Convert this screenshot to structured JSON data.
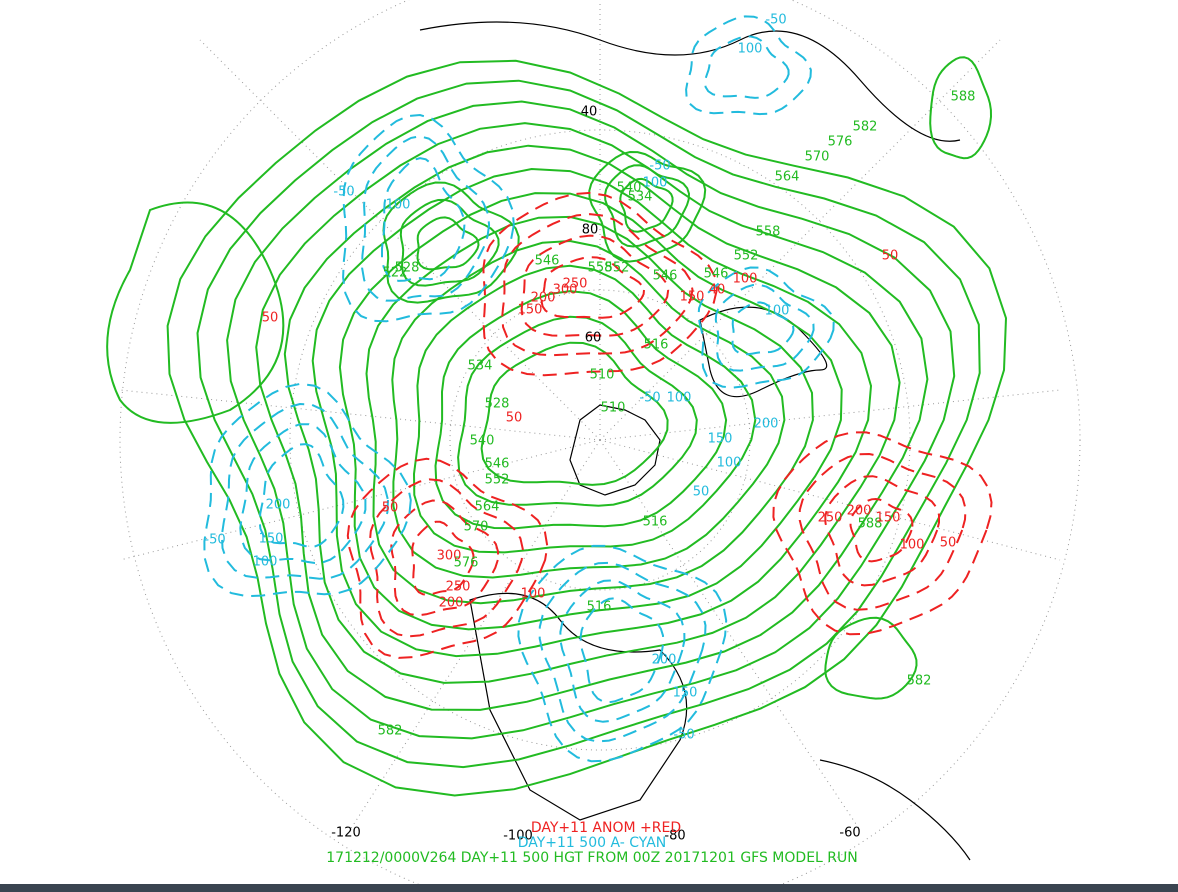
{
  "map": {
    "longitude_labels": [
      "40",
      "80",
      "60",
      "-120",
      "-100",
      "-80",
      "-60"
    ],
    "height_labels": [
      "588",
      "582",
      "576",
      "570",
      "564",
      "558",
      "552",
      "546",
      "546",
      "552",
      "558",
      "546",
      "540",
      "534",
      "522",
      "528",
      "534",
      "528",
      "540",
      "546",
      "552",
      "564",
      "570",
      "576",
      "516",
      "510",
      "510",
      "516",
      "582",
      "582",
      "588",
      "516"
    ],
    "anomaly_labels": [
      "50",
      "150",
      "200",
      "300",
      "250",
      "150",
      "40",
      "100",
      "50",
      "50",
      "50",
      "300",
      "250",
      "200",
      "100",
      "250",
      "200",
      "150",
      "100",
      "50"
    ],
    "departure_labels": [
      "-50",
      "100",
      "-50",
      "100",
      "-50",
      "100",
      "100",
      "-50",
      "100",
      "150",
      "200",
      "100",
      "50",
      "200",
      "150",
      "100",
      "-50",
      "200",
      "150",
      "-50"
    ]
  },
  "footer": {
    "anomaly_legend": "DAY+11 ANOM +RED",
    "departure_legend": "DAY+11 500 A- CYAN",
    "run_info": "171212/0000V264 DAY+11 500 HGT FROM 00Z 20171201 GFS MODEL RUN"
  }
}
